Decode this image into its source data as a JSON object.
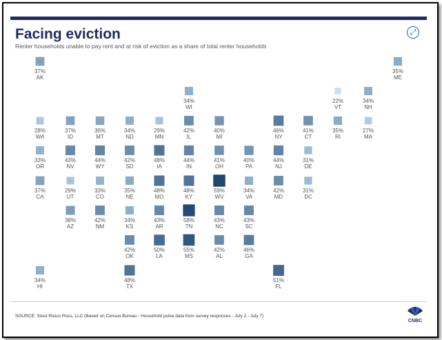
{
  "header": {
    "title": "Facing eviction",
    "subtitle": "Renter households unable to pay rent and at risk of eviction as a share of total renter households",
    "expand_icon": "expand-icon"
  },
  "footer": {
    "source": "SOURCE:   Stout Risius Ross, LLC (Based on Census Bureau - Household pulse data from survey responses - July 2 - July 7)",
    "logo_text": "CNBC"
  },
  "colors": {
    "accent": "#1f2c5c",
    "scale_low": "#c6e1f4",
    "scale_high": "#1e4670"
  },
  "chart_data": {
    "type": "heatmap",
    "title": "Facing eviction",
    "subtitle": "Renter households unable to pay rent and at risk of eviction as a share of total renter households",
    "value_unit": "%",
    "value_range": [
      22,
      59
    ],
    "tiles": [
      {
        "state": "AK",
        "value": 37,
        "label": "37%",
        "row": 0,
        "col": 0
      },
      {
        "state": "ME",
        "value": 35,
        "label": "35%",
        "row": 0,
        "col": 12
      },
      {
        "state": "WI",
        "value": 34,
        "label": "34%",
        "row": 1,
        "col": 5
      },
      {
        "state": "VT",
        "value": 22,
        "label": "22%",
        "row": 1,
        "col": 10
      },
      {
        "state": "NH",
        "value": 34,
        "label": "34%",
        "row": 1,
        "col": 11
      },
      {
        "state": "WA",
        "value": 28,
        "label": "28%",
        "row": 2,
        "col": 0
      },
      {
        "state": "ID",
        "value": 37,
        "label": "37%",
        "row": 2,
        "col": 1
      },
      {
        "state": "MT",
        "value": 36,
        "label": "36%",
        "row": 2,
        "col": 2
      },
      {
        "state": "ND",
        "value": 34,
        "label": "34%",
        "row": 2,
        "col": 3
      },
      {
        "state": "MN",
        "value": 29,
        "label": "29%",
        "row": 2,
        "col": 4
      },
      {
        "state": "IL",
        "value": 42,
        "label": "42%",
        "row": 2,
        "col": 5
      },
      {
        "state": "MI",
        "value": 40,
        "label": "40%",
        "row": 2,
        "col": 6
      },
      {
        "state": "NY",
        "value": 46,
        "label": "46%",
        "row": 2,
        "col": 8
      },
      {
        "state": "CT",
        "value": 41,
        "label": "41%",
        "row": 2,
        "col": 9
      },
      {
        "state": "RI",
        "value": 35,
        "label": "35%",
        "row": 2,
        "col": 10
      },
      {
        "state": "MA",
        "value": 27,
        "label": "27%",
        "row": 2,
        "col": 11
      },
      {
        "state": "OR",
        "value": 33,
        "label": "33%",
        "row": 3,
        "col": 0
      },
      {
        "state": "NV",
        "value": 43,
        "label": "43%",
        "row": 3,
        "col": 1
      },
      {
        "state": "WY",
        "value": 44,
        "label": "44%",
        "row": 3,
        "col": 2
      },
      {
        "state": "SD",
        "value": 42,
        "label": "42%",
        "row": 3,
        "col": 3
      },
      {
        "state": "IA",
        "value": 48,
        "label": "48%",
        "row": 3,
        "col": 4
      },
      {
        "state": "IN",
        "value": 44,
        "label": "44%",
        "row": 3,
        "col": 5
      },
      {
        "state": "OH",
        "value": 41,
        "label": "41%",
        "row": 3,
        "col": 6
      },
      {
        "state": "PA",
        "value": 40,
        "label": "40%",
        "row": 3,
        "col": 7
      },
      {
        "state": "NJ",
        "value": 44,
        "label": "44%",
        "row": 3,
        "col": 8
      },
      {
        "state": "DE",
        "value": 31,
        "label": "31%",
        "row": 3,
        "col": 9
      },
      {
        "state": "CA",
        "value": 37,
        "label": "37%",
        "row": 4,
        "col": 0
      },
      {
        "state": "UT",
        "value": 29,
        "label": "29%",
        "row": 4,
        "col": 1
      },
      {
        "state": "CO",
        "value": 33,
        "label": "33%",
        "row": 4,
        "col": 2
      },
      {
        "state": "NE",
        "value": 35,
        "label": "35%",
        "row": 4,
        "col": 3
      },
      {
        "state": "MO",
        "value": 48,
        "label": "48%",
        "row": 4,
        "col": 4
      },
      {
        "state": "KY",
        "value": 48,
        "label": "48%",
        "row": 4,
        "col": 5
      },
      {
        "state": "WV",
        "value": 59,
        "label": "59%",
        "row": 4,
        "col": 6
      },
      {
        "state": "VA",
        "value": 34,
        "label": "34%",
        "row": 4,
        "col": 7
      },
      {
        "state": "MD",
        "value": 42,
        "label": "42%",
        "row": 4,
        "col": 8
      },
      {
        "state": "DC",
        "value": 31,
        "label": "31%",
        "row": 4,
        "col": 9
      },
      {
        "state": "AZ",
        "value": 38,
        "label": "38%",
        "row": 5,
        "col": 1
      },
      {
        "state": "NM",
        "value": 42,
        "label": "42%",
        "row": 5,
        "col": 2
      },
      {
        "state": "KS",
        "value": 34,
        "label": "34%",
        "row": 5,
        "col": 3
      },
      {
        "state": "AR",
        "value": 43,
        "label": "43%",
        "row": 5,
        "col": 4
      },
      {
        "state": "TN",
        "value": 58,
        "label": "58%",
        "row": 5,
        "col": 5
      },
      {
        "state": "NC",
        "value": 43,
        "label": "43%",
        "row": 5,
        "col": 6
      },
      {
        "state": "SC",
        "value": 43,
        "label": "43%",
        "row": 5,
        "col": 7
      },
      {
        "state": "OK",
        "value": 42,
        "label": "42%",
        "row": 6,
        "col": 3
      },
      {
        "state": "LA",
        "value": 50,
        "label": "50%",
        "row": 6,
        "col": 4
      },
      {
        "state": "MS",
        "value": 55,
        "label": "55%",
        "row": 6,
        "col": 5
      },
      {
        "state": "AL",
        "value": 42,
        "label": "42%",
        "row": 6,
        "col": 6
      },
      {
        "state": "GA",
        "value": 46,
        "label": "46%",
        "row": 6,
        "col": 7
      },
      {
        "state": "HI",
        "value": 34,
        "label": "34%",
        "row": 7,
        "col": 0
      },
      {
        "state": "TX",
        "value": 48,
        "label": "48%",
        "row": 7,
        "col": 3
      },
      {
        "state": "FL",
        "value": 51,
        "label": "51%",
        "row": 7,
        "col": 8
      }
    ]
  }
}
